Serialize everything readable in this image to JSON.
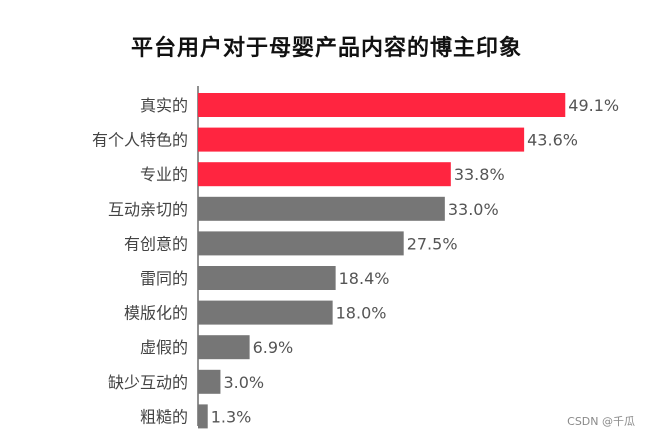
{
  "title": "平台用户对于母婴产品内容的博主印象",
  "watermark": "CSDN @千瓜",
  "colors": {
    "highlight": "#ff2540",
    "normal": "#767676",
    "axis": "#222222",
    "category_text": "#444444",
    "value_text": "#555555"
  },
  "chart_data": {
    "type": "bar",
    "orientation": "horizontal",
    "title": "平台用户对于母婴产品内容的博主印象",
    "categories": [
      "真实的",
      "有个人特色的",
      "专业的",
      "互动亲切的",
      "有创意的",
      "雷同的",
      "模版化的",
      "虚假的",
      "缺少互动的",
      "粗糙的"
    ],
    "values": [
      49.1,
      43.6,
      33.8,
      33.0,
      27.5,
      18.4,
      18.0,
      6.9,
      3.0,
      1.3
    ],
    "value_labels": [
      "49.1%",
      "43.6%",
      "33.8%",
      "33.0%",
      "27.5%",
      "18.4%",
      "18.0%",
      "6.9%",
      "3.0%",
      "1.3%"
    ],
    "highlighted": [
      true,
      true,
      true,
      false,
      false,
      false,
      false,
      false,
      false,
      false
    ],
    "xlim": [
      0,
      50
    ],
    "unit": "%",
    "grid": false,
    "legend": "none"
  }
}
